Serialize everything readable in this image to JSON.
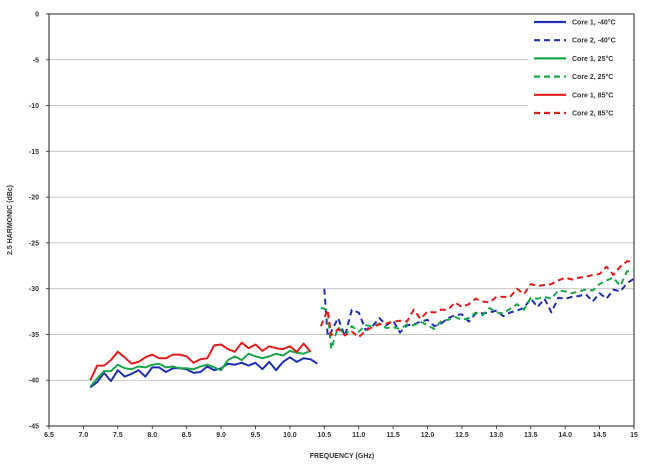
{
  "chart_data": {
    "type": "line",
    "title": "",
    "xlabel": "FREQUENCY (GHz)",
    "ylabel": "2.5 HARMONIC (dBc)",
    "xlim": [
      6.5,
      15.0
    ],
    "ylim": [
      -45,
      0
    ],
    "x_ticks": [
      6.5,
      7.0,
      7.5,
      8.0,
      8.5,
      9.0,
      9.5,
      10.0,
      10.5,
      11.0,
      11.5,
      12.0,
      12.5,
      13.0,
      13.5,
      14.0,
      14.5,
      15.0
    ],
    "x_tick_labels": [
      "6.5",
      "7.0",
      "7.5",
      "8.0",
      "8.5",
      "9.0",
      "9.5",
      "10.0",
      "10.5",
      "11.0",
      "11.5",
      "12.0",
      "12.5",
      "13.0",
      "13.5",
      "14.0",
      "14.5",
      "15"
    ],
    "y_ticks": [
      0,
      -5,
      -10,
      -15,
      -20,
      -25,
      -30,
      -35,
      -40,
      -45
    ],
    "y_tick_labels": [
      "0",
      "-5",
      "-10",
      "-15",
      "-20",
      "-25",
      "-30",
      "-35",
      "-40",
      "-45"
    ],
    "grid": "horizontal",
    "legend_position": "top-right",
    "series": [
      {
        "name": "Core 1, -40°C",
        "color": "#1f2fb0",
        "dash": "solid",
        "x": [
          7.1,
          7.2,
          7.3,
          7.4,
          7.5,
          7.6,
          7.7,
          7.8,
          7.9,
          8.0,
          8.1,
          8.2,
          8.3,
          8.4,
          8.5,
          8.6,
          8.7,
          8.8,
          8.9,
          9.0,
          9.1,
          9.2,
          9.3,
          9.4,
          9.5,
          9.6,
          9.7,
          9.8,
          9.9,
          10.0,
          10.1,
          10.2,
          10.3,
          10.4
        ],
        "values": [
          -40.8,
          -40.2,
          -39.2,
          -40.1,
          -38.9,
          -39.6,
          -39.3,
          -38.9,
          -39.6,
          -38.6,
          -38.6,
          -39.1,
          -38.7,
          -38.7,
          -38.8,
          -39.2,
          -39.1,
          -38.5,
          -38.9,
          -38.7,
          -38.2,
          -38.3,
          -38.1,
          -38.4,
          -38.1,
          -38.8,
          -38.0,
          -38.9,
          -38.0,
          -37.5,
          -38.0,
          -37.6,
          -37.7,
          -38.2
        ]
      },
      {
        "name": "Core 2, -40°C",
        "color": "#1f2fb0",
        "dash": "dashed",
        "x": [
          10.5,
          10.55,
          10.6,
          10.7,
          10.8,
          10.9,
          11.0,
          11.1,
          11.2,
          11.3,
          11.4,
          11.5,
          11.6,
          11.7,
          11.8,
          11.9,
          12.0,
          12.1,
          12.2,
          12.3,
          12.4,
          12.5,
          12.6,
          12.7,
          12.8,
          12.9,
          13.0,
          13.1,
          13.2,
          13.3,
          13.4,
          13.5,
          13.6,
          13.7,
          13.8,
          13.9,
          14.0,
          14.1,
          14.2,
          14.3,
          14.4,
          14.5,
          14.6,
          14.7,
          14.8,
          14.9,
          15.0
        ],
        "values": [
          -30.0,
          -35.2,
          -34.7,
          -33.2,
          -35.2,
          -32.3,
          -32.6,
          -34.5,
          -34.1,
          -33.2,
          -34.0,
          -33.5,
          -34.8,
          -34.0,
          -33.9,
          -33.6,
          -33.4,
          -34.1,
          -33.8,
          -33.2,
          -32.9,
          -32.8,
          -33.6,
          -32.7,
          -32.7,
          -32.6,
          -32.4,
          -33.0,
          -32.6,
          -32.4,
          -32.1,
          -31.1,
          -32.0,
          -31.1,
          -32.6,
          -31.0,
          -31.1,
          -30.9,
          -30.8,
          -30.6,
          -31.4,
          -30.5,
          -31.1,
          -30.1,
          -30.3,
          -29.4,
          -28.9
        ]
      },
      {
        "name": "Core 1, 25°C",
        "color": "#1ca64a",
        "dash": "solid",
        "x": [
          7.1,
          7.2,
          7.3,
          7.4,
          7.5,
          7.6,
          7.7,
          7.8,
          7.9,
          8.0,
          8.1,
          8.2,
          8.3,
          8.4,
          8.5,
          8.6,
          8.7,
          8.8,
          8.9,
          9.0,
          9.1,
          9.2,
          9.3,
          9.4,
          9.5,
          9.6,
          9.7,
          9.8,
          9.9,
          10.0,
          10.1,
          10.2,
          10.3
        ],
        "values": [
          -40.7,
          -39.8,
          -39.0,
          -39.0,
          -38.3,
          -38.7,
          -38.8,
          -38.5,
          -38.6,
          -38.3,
          -38.2,
          -38.6,
          -38.5,
          -38.7,
          -38.7,
          -38.8,
          -38.5,
          -38.3,
          -38.6,
          -38.9,
          -37.8,
          -37.4,
          -37.8,
          -37.1,
          -37.4,
          -37.6,
          -37.4,
          -37.1,
          -37.3,
          -36.8,
          -37.0,
          -37.1,
          -36.8
        ]
      },
      {
        "name": "Core 2, 25°C",
        "color": "#1ca64a",
        "dash": "dashed",
        "x": [
          10.45,
          10.55,
          10.6,
          10.7,
          10.8,
          10.9,
          11.0,
          11.1,
          11.2,
          11.3,
          11.4,
          11.5,
          11.6,
          11.7,
          11.8,
          11.9,
          12.0,
          12.1,
          12.2,
          12.3,
          12.4,
          12.5,
          12.6,
          12.7,
          12.8,
          12.9,
          13.0,
          13.1,
          13.2,
          13.3,
          13.4,
          13.5,
          13.6,
          13.7,
          13.8,
          13.9,
          14.0,
          14.1,
          14.2,
          14.3,
          14.4,
          14.5,
          14.6,
          14.7,
          14.8,
          14.9,
          15.0
        ],
        "values": [
          -32.1,
          -32.3,
          -36.6,
          -34.2,
          -35.1,
          -34.1,
          -34.7,
          -34.0,
          -34.1,
          -33.8,
          -34.3,
          -34.2,
          -34.4,
          -33.9,
          -34.0,
          -33.6,
          -34.0,
          -34.4,
          -33.5,
          -33.4,
          -33.1,
          -33.4,
          -33.2,
          -32.6,
          -32.9,
          -32.1,
          -32.6,
          -32.7,
          -32.2,
          -31.7,
          -32.3,
          -31.0,
          -31.1,
          -30.9,
          -31.1,
          -30.2,
          -30.3,
          -30.5,
          -30.3,
          -30.1,
          -30.2,
          -29.5,
          -29.1,
          -28.8,
          -29.7,
          -28.1,
          -28.0
        ]
      },
      {
        "name": "Core 1, 85°C",
        "color": "#e01e1e",
        "dash": "solid",
        "x": [
          7.1,
          7.2,
          7.3,
          7.4,
          7.5,
          7.6,
          7.7,
          7.8,
          7.9,
          8.0,
          8.1,
          8.2,
          8.3,
          8.4,
          8.5,
          8.6,
          8.7,
          8.8,
          8.9,
          9.0,
          9.1,
          9.2,
          9.3,
          9.4,
          9.5,
          9.6,
          9.7,
          9.8,
          9.9,
          10.0,
          10.1,
          10.2,
          10.3
        ],
        "values": [
          -40.0,
          -38.4,
          -38.4,
          -37.8,
          -36.9,
          -37.5,
          -38.2,
          -38.0,
          -37.5,
          -37.2,
          -37.6,
          -37.6,
          -37.2,
          -37.2,
          -37.4,
          -38.1,
          -37.7,
          -37.6,
          -36.2,
          -36.1,
          -36.6,
          -36.9,
          -35.9,
          -36.5,
          -36.1,
          -36.8,
          -36.3,
          -36.5,
          -36.6,
          -36.3,
          -36.9,
          -36.0,
          -36.9
        ]
      },
      {
        "name": "Core 2, 85°C",
        "color": "#e01e1e",
        "dash": "dashed",
        "x": [
          10.45,
          10.55,
          10.6,
          10.7,
          10.8,
          10.9,
          11.0,
          11.1,
          11.2,
          11.3,
          11.4,
          11.5,
          11.6,
          11.7,
          11.8,
          11.9,
          12.0,
          12.1,
          12.2,
          12.3,
          12.4,
          12.5,
          12.6,
          12.7,
          12.8,
          12.9,
          13.0,
          13.1,
          13.2,
          13.3,
          13.4,
          13.5,
          13.6,
          13.7,
          13.8,
          13.9,
          14.0,
          14.1,
          14.2,
          14.3,
          14.4,
          14.5,
          14.6,
          14.7,
          14.8,
          14.9,
          15.0
        ],
        "values": [
          -34.1,
          -32.3,
          -35.1,
          -34.4,
          -35.1,
          -34.7,
          -35.3,
          -34.6,
          -34.2,
          -33.9,
          -33.8,
          -33.6,
          -33.5,
          -33.6,
          -32.3,
          -33.3,
          -32.5,
          -32.6,
          -32.3,
          -32.3,
          -31.5,
          -32.0,
          -31.7,
          -31.1,
          -31.4,
          -31.5,
          -30.9,
          -30.9,
          -30.9,
          -30.0,
          -30.6,
          -29.5,
          -29.7,
          -29.6,
          -29.5,
          -29.1,
          -28.8,
          -29.0,
          -28.8,
          -28.7,
          -28.5,
          -28.4,
          -27.6,
          -28.5,
          -27.6,
          -27.0,
          -27.0
        ]
      }
    ]
  }
}
